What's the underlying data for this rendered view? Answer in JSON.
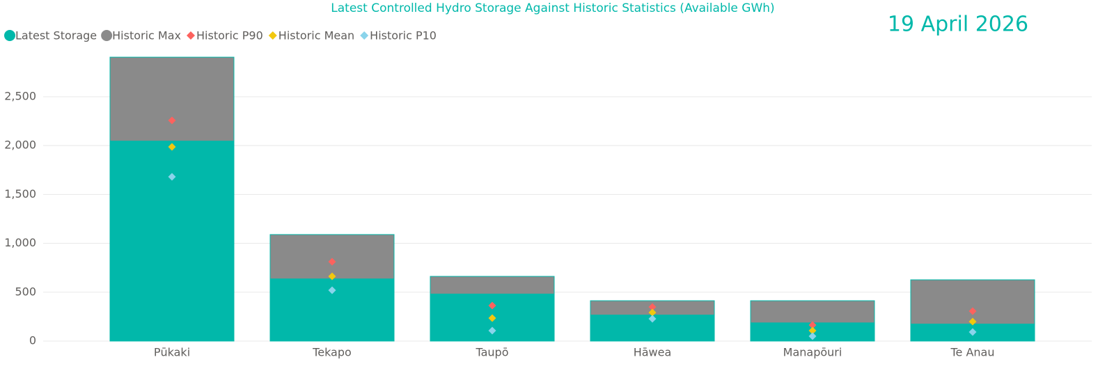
{
  "chart_data": {
    "type": "bar",
    "title": "Latest Controlled Hydro Storage Against Historic Statistics (Available GWh)",
    "annotation": "19 April 2026",
    "categories": [
      "Pūkaki",
      "Tekapo",
      "Taupō",
      "Hāwea",
      "Manapōuri",
      "Te Anau"
    ],
    "series": [
      {
        "name": "Latest Storage",
        "color": "#01b8aa",
        "mark": "bar",
        "values": [
          2050,
          640,
          485,
          270,
          190,
          178
        ]
      },
      {
        "name": "Historic Max",
        "color": "#8a8a8a",
        "mark": "bar",
        "values": [
          2905,
          1090,
          662,
          413,
          413,
          627
        ]
      },
      {
        "name": "Historic P90",
        "color": "#fd625e",
        "mark": "diamond",
        "values": [
          2258,
          812,
          363,
          349,
          164,
          306
        ]
      },
      {
        "name": "Historic Mean",
        "color": "#f2c80f",
        "mark": "diamond",
        "values": [
          1987,
          662,
          235,
          292,
          107,
          199
        ]
      },
      {
        "name": "Historic P10",
        "color": "#8ad4eb",
        "mark": "diamond",
        "values": [
          1681,
          520,
          107,
          228,
          50,
          93
        ]
      }
    ],
    "ylim": [
      0,
      2920
    ],
    "yticks": [
      0,
      500,
      {
        "value": 1000,
        "label": "1,000"
      },
      {
        "value": 1500,
        "label": "1,500"
      },
      {
        "value": 2000,
        "label": "2,000"
      },
      {
        "value": 2500,
        "label": "2,500"
      }
    ],
    "grid": true
  }
}
